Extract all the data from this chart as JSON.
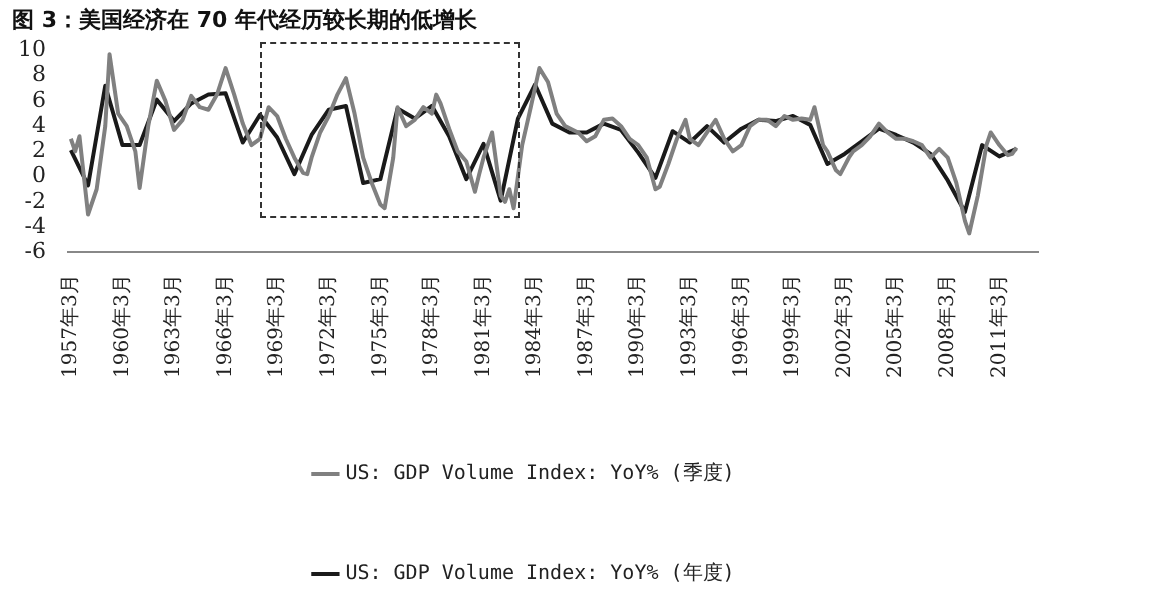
{
  "chart_data": {
    "type": "line",
    "title": "图 3：美国经济在 70 年代经历较长期的低增长",
    "xlim": [
      "1957-01",
      "2013-06"
    ],
    "xticks": [
      {
        "value": "1957-03",
        "label": "1957年3月"
      },
      {
        "value": "1960-03",
        "label": "1960年3月"
      },
      {
        "value": "1963-03",
        "label": "1963年3月"
      },
      {
        "value": "1966-03",
        "label": "1966年3月"
      },
      {
        "value": "1969-03",
        "label": "1969年3月"
      },
      {
        "value": "1972-03",
        "label": "1972年3月"
      },
      {
        "value": "1975-03",
        "label": "1975年3月"
      },
      {
        "value": "1978-03",
        "label": "1978年3月"
      },
      {
        "value": "1981-03",
        "label": "1981年3月"
      },
      {
        "value": "1984-03",
        "label": "1984年3月"
      },
      {
        "value": "1987-03",
        "label": "1987年3月"
      },
      {
        "value": "1990-03",
        "label": "1990年3月"
      },
      {
        "value": "1993-03",
        "label": "1993年3月"
      },
      {
        "value": "1996-03",
        "label": "1996年3月"
      },
      {
        "value": "1999-03",
        "label": "1999年3月"
      },
      {
        "value": "2002-03",
        "label": "2002年3月"
      },
      {
        "value": "2005-03",
        "label": "2005年3月"
      },
      {
        "value": "2008-03",
        "label": "2008年3月"
      },
      {
        "value": "2011-03",
        "label": "2011年3月"
      }
    ],
    "ylim": [
      -6,
      10
    ],
    "yticks": [
      -6,
      -4,
      -2,
      0,
      2,
      4,
      6,
      8,
      10
    ],
    "grid": false,
    "legend": "bottom",
    "marker": "none",
    "line_style": "solid",
    "series": [
      {
        "name": "US: GDP Volume Index: YoY% (季度)",
        "color": "#808080",
        "x": [
          "1957-03",
          "1957-06",
          "1957-09",
          "1958-03",
          "1958-09",
          "1959-03",
          "1959-06",
          "1959-12",
          "1960-06",
          "1960-12",
          "1961-03",
          "1961-09",
          "1962-03",
          "1962-09",
          "1963-03",
          "1963-09",
          "1964-03",
          "1964-09",
          "1965-03",
          "1965-09",
          "1966-03",
          "1966-09",
          "1967-03",
          "1967-09",
          "1968-03",
          "1968-09",
          "1969-03",
          "1969-09",
          "1970-03",
          "1970-09",
          "1970-12",
          "1971-03",
          "1971-09",
          "1972-03",
          "1972-09",
          "1973-03",
          "1973-09",
          "1974-03",
          "1974-09",
          "1975-03",
          "1975-06",
          "1975-12",
          "1976-03",
          "1976-09",
          "1977-03",
          "1977-09",
          "1978-03",
          "1978-06",
          "1978-09",
          "1979-03",
          "1979-09",
          "1980-03",
          "1980-09",
          "1980-12",
          "1981-03",
          "1981-09",
          "1981-12",
          "1982-03",
          "1982-06",
          "1982-09",
          "1982-12",
          "1983-06",
          "1983-12",
          "1984-06",
          "1984-12",
          "1985-06",
          "1985-12",
          "1986-09",
          "1987-03",
          "1987-09",
          "1988-03",
          "1988-09",
          "1989-03",
          "1989-09",
          "1990-03",
          "1990-09",
          "1991-03",
          "1991-06",
          "1991-12",
          "1992-06",
          "1992-12",
          "1993-03",
          "1993-09",
          "1994-03",
          "1994-09",
          "1995-03",
          "1995-09",
          "1996-03",
          "1996-09",
          "1997-03",
          "1997-09",
          "1998-03",
          "1998-09",
          "1999-03",
          "1999-09",
          "2000-03",
          "2000-06",
          "2000-12",
          "2001-03",
          "2001-09",
          "2001-12",
          "2002-06",
          "2002-09",
          "2003-03",
          "2003-09",
          "2004-03",
          "2004-09",
          "2005-03",
          "2005-09",
          "2006-03",
          "2006-09",
          "2007-03",
          "2007-09",
          "2008-03",
          "2008-09",
          "2009-03",
          "2009-06",
          "2009-12",
          "2010-06",
          "2010-09",
          "2011-03",
          "2011-09",
          "2011-12",
          "2012-03"
        ],
        "values": [
          3.0,
          2.0,
          3.2,
          -3.0,
          -1,
          4,
          9.7,
          5,
          4,
          2,
          -0.9,
          4,
          7.6,
          6,
          3.7,
          4.5,
          6.4,
          5.5,
          5.3,
          6.5,
          8.6,
          6.5,
          4.2,
          2.5,
          3.0,
          5.5,
          4.8,
          3.0,
          1.5,
          0.3,
          0.2,
          1.5,
          3.5,
          4.8,
          6.5,
          7.8,
          5,
          1.5,
          -0.5,
          -2.2,
          -2.5,
          1.5,
          5.5,
          4,
          4.5,
          5.5,
          5,
          6.5,
          5.8,
          3.8,
          2,
          1.2,
          -1.2,
          0.2,
          1.5,
          3.5,
          1.0,
          -1.5,
          -2.0,
          -1.0,
          -2.5,
          2.5,
          5.5,
          8.6,
          7.5,
          5.0,
          4.0,
          3.5,
          2.8,
          3.2,
          4.5,
          4.6,
          4.0,
          3.0,
          2.5,
          1.5,
          -1.0,
          -0.8,
          1.0,
          3.0,
          4.5,
          3.0,
          2.5,
          3.5,
          4.5,
          3.0,
          2.0,
          2.5,
          4.0,
          4.5,
          4.5,
          4.0,
          4.8,
          4.5,
          4.6,
          4.5,
          5.5,
          2.5,
          2.0,
          0.5,
          0.2,
          1.5,
          2.0,
          2.5,
          3.2,
          4.2,
          3.5,
          3.0,
          3.0,
          2.8,
          2.5,
          1.5,
          2.2,
          1.5,
          -0.5,
          -3.5,
          -4.5,
          -1.5,
          2.5,
          3.5,
          2.5,
          1.7,
          1.8,
          2.3
        ]
      },
      {
        "name": "US: GDP Volume Index: YoY% (年度)",
        "color": "#1a1a1a",
        "x": [
          "1957-03",
          "1958-03",
          "1959-03",
          "1960-03",
          "1961-03",
          "1962-03",
          "1963-03",
          "1964-03",
          "1965-03",
          "1966-03",
          "1967-03",
          "1968-03",
          "1969-03",
          "1970-03",
          "1971-03",
          "1972-03",
          "1973-03",
          "1974-03",
          "1975-03",
          "1976-03",
          "1977-03",
          "1978-03",
          "1979-03",
          "1980-03",
          "1981-03",
          "1982-03",
          "1983-03",
          "1984-03",
          "1985-03",
          "1986-03",
          "1987-03",
          "1988-03",
          "1989-03",
          "1990-03",
          "1991-03",
          "1992-03",
          "1993-03",
          "1994-03",
          "1995-03",
          "1996-03",
          "1997-03",
          "1998-03",
          "1999-03",
          "2000-03",
          "2001-03",
          "2002-03",
          "2003-03",
          "2004-03",
          "2005-03",
          "2006-03",
          "2007-03",
          "2008-03",
          "2009-03",
          "2010-03",
          "2011-03",
          "2012-03"
        ],
        "values": [
          2.1,
          -0.7,
          7.2,
          2.5,
          2.5,
          6.1,
          4.4,
          5.8,
          6.5,
          6.6,
          2.7,
          4.9,
          3.1,
          0.2,
          3.3,
          5.3,
          5.6,
          -0.5,
          -0.2,
          5.4,
          4.6,
          5.6,
          3.2,
          -0.2,
          2.6,
          -1.9,
          4.6,
          7.3,
          4.2,
          3.5,
          3.5,
          4.2,
          3.7,
          1.9,
          -0.1,
          3.6,
          2.7,
          4.0,
          2.7,
          3.8,
          4.5,
          4.4,
          4.8,
          4.1,
          1.0,
          1.8,
          2.8,
          3.8,
          3.3,
          2.7,
          1.8,
          -0.3,
          -2.8,
          2.5,
          1.6,
          2.2
        ]
      }
    ]
  }
}
